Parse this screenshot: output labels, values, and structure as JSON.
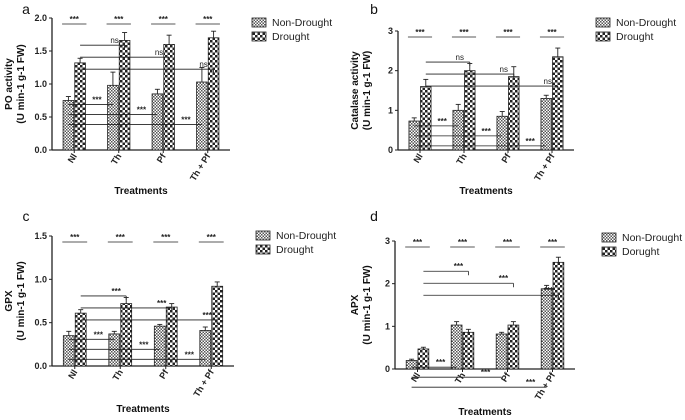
{
  "chart_data": [
    {
      "id": "a",
      "panel_label": "a",
      "type": "bar",
      "ylabel_line1": "PO activity",
      "ylabel_line2": "(U min-1 g-1 FW)",
      "xlabel": "Treatments",
      "categories": [
        "Nl",
        "Th",
        "Pf",
        "Th + Pf"
      ],
      "ylim": [
        0,
        2.0
      ],
      "yticks": [
        "0.0",
        "0.5",
        "1.0",
        "1.5",
        "2.0"
      ],
      "ytick_values": [
        0,
        0.5,
        1.0,
        1.5,
        2.0
      ],
      "series": [
        {
          "name": "Non-Drought",
          "values": [
            0.75,
            0.98,
            0.85,
            1.03
          ],
          "errors": [
            0.06,
            0.2,
            0.07,
            0.22
          ]
        },
        {
          "name": "Drought",
          "values": [
            1.32,
            1.66,
            1.6,
            1.7
          ],
          "errors": [
            0.07,
            0.12,
            0.14,
            0.1
          ]
        }
      ],
      "within_sig": [
        "***",
        "***",
        "***",
        "***"
      ],
      "upper_brackets": [
        {
          "from": 0,
          "to": 1,
          "label": "ns"
        },
        {
          "from": 0,
          "to": 2,
          "label": "ns"
        },
        {
          "from": 0,
          "to": 3,
          "label": "ns"
        }
      ],
      "lower_brackets": [
        {
          "from": 0,
          "to": 1,
          "label": "***"
        },
        {
          "from": 0,
          "to": 2,
          "label": "***"
        },
        {
          "from": 0,
          "to": 3,
          "label": "***"
        }
      ]
    },
    {
      "id": "b",
      "panel_label": "b",
      "type": "bar",
      "ylabel_line1": "Catalase activity",
      "ylabel_line2": "(U min-1 g-1 FW)",
      "xlabel": "Treatments",
      "categories": [
        "Nl",
        "Th",
        "Pf",
        "Th + Pf"
      ],
      "ylim": [
        0,
        3
      ],
      "yticks": [
        "0",
        "1",
        "2",
        "3"
      ],
      "ytick_values": [
        0,
        1,
        2,
        3
      ],
      "series": [
        {
          "name": "Non-Drought",
          "values": [
            0.73,
            1.0,
            0.85,
            1.3
          ],
          "errors": [
            0.08,
            0.15,
            0.12,
            0.08
          ]
        },
        {
          "name": "Drought",
          "values": [
            1.6,
            2.0,
            1.85,
            2.35
          ],
          "errors": [
            0.18,
            0.18,
            0.25,
            0.22
          ]
        }
      ],
      "within_sig": [
        "***",
        "***",
        "***",
        "***"
      ],
      "upper_brackets": [
        {
          "from": 0,
          "to": 1,
          "label": "ns"
        },
        {
          "from": 0,
          "to": 2,
          "label": "ns"
        },
        {
          "from": 0,
          "to": 3,
          "label": "ns"
        }
      ],
      "lower_brackets": [
        {
          "from": 0,
          "to": 1,
          "label": "***"
        },
        {
          "from": 0,
          "to": 2,
          "label": "***"
        },
        {
          "from": 0,
          "to": 3,
          "label": "***"
        }
      ]
    },
    {
      "id": "c",
      "panel_label": "c",
      "type": "bar",
      "ylabel_line1": "GPX",
      "ylabel_line2": "(U min-1 g-1 FW)",
      "xlabel": "Treatments",
      "categories": [
        "Nl",
        "Th",
        "Pf",
        "Th + Pf"
      ],
      "ylim": [
        0,
        1.5
      ],
      "yticks": [
        "0.0",
        "0.5",
        "1.0",
        "1.5"
      ],
      "ytick_values": [
        0,
        0.5,
        1.0,
        1.5
      ],
      "series": [
        {
          "name": "Non-Drought",
          "values": [
            0.35,
            0.37,
            0.46,
            0.41
          ],
          "errors": [
            0.05,
            0.03,
            0.02,
            0.04
          ]
        },
        {
          "name": "Drought",
          "values": [
            0.61,
            0.72,
            0.68,
            0.92
          ],
          "errors": [
            0.04,
            0.07,
            0.04,
            0.05
          ]
        }
      ],
      "within_sig": [
        "***",
        "***",
        "***",
        "***"
      ],
      "upper_brackets": [
        {
          "from": 0,
          "to": 1,
          "label": "***"
        },
        {
          "from": 0,
          "to": 2,
          "label": "***"
        },
        {
          "from": 0,
          "to": 3,
          "label": "***"
        }
      ],
      "lower_brackets": [
        {
          "from": 0,
          "to": 1,
          "label": "***"
        },
        {
          "from": 0,
          "to": 2,
          "label": "***"
        },
        {
          "from": 0,
          "to": 3,
          "label": "***"
        }
      ]
    },
    {
      "id": "d",
      "panel_label": "d",
      "type": "bar",
      "ylabel_line1": "APX",
      "ylabel_line2": "(U min-1 g-1 FW)",
      "xlabel": "Treatments",
      "categories": [
        "Nl",
        "Th",
        "Pf",
        "Th + Pf"
      ],
      "ylim": [
        0,
        3
      ],
      "yticks": [
        "0",
        "1",
        "2",
        "3"
      ],
      "ytick_values": [
        0,
        1,
        2,
        3
      ],
      "series": [
        {
          "name": "Non-Drought",
          "values": [
            0.2,
            1.03,
            0.82,
            1.88
          ],
          "errors": [
            0.03,
            0.08,
            0.04,
            0.08
          ]
        },
        {
          "name": "Dorught",
          "values": [
            0.47,
            0.86,
            1.03,
            2.5
          ],
          "errors": [
            0.04,
            0.07,
            0.08,
            0.12
          ]
        }
      ],
      "within_sig": [
        "***",
        "***",
        "***",
        "***"
      ],
      "upper_brackets": [
        {
          "from": 0,
          "to": 1,
          "label": "***"
        },
        {
          "from": 0,
          "to": 2,
          "label": "***"
        },
        {
          "from": 0,
          "to": 3,
          "label": "***"
        }
      ],
      "lower_brackets": [
        {
          "from": 0,
          "to": 1,
          "label": "***"
        },
        {
          "from": 0,
          "to": 2,
          "label": "***"
        },
        {
          "from": 0,
          "to": 3,
          "label": "***"
        }
      ]
    }
  ]
}
